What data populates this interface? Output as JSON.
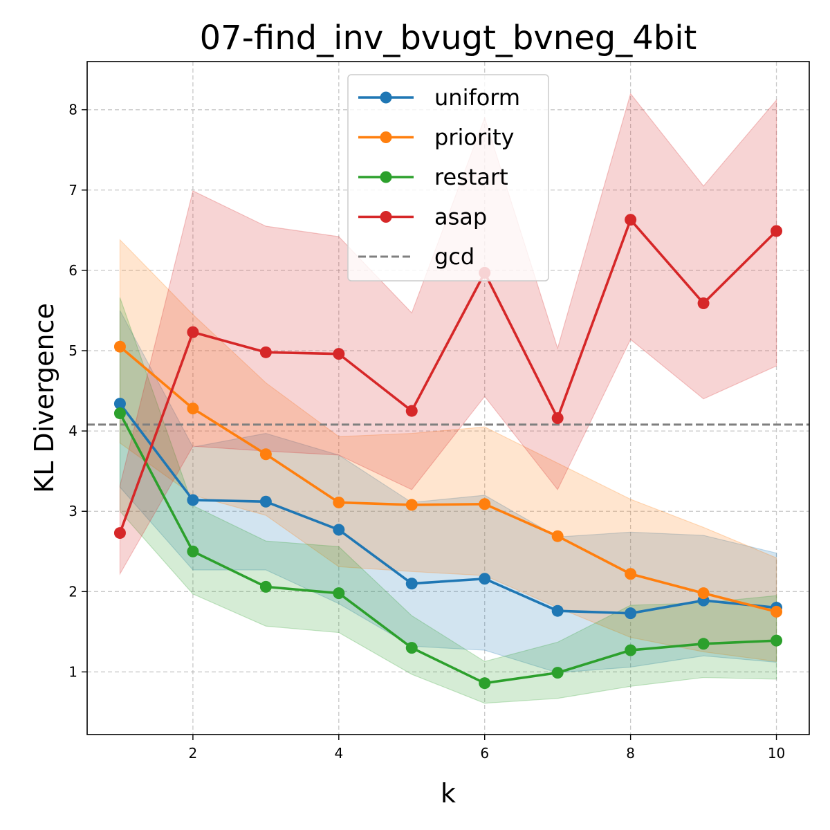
{
  "chart_data": {
    "type": "line",
    "title": "07-find_inv_bvugt_bvneg_4bit",
    "xlabel": "k",
    "ylabel": "KL Divergence",
    "xlim": [
      0.55,
      10.45
    ],
    "ylim": [
      0.22,
      8.6
    ],
    "xticks": [
      2,
      4,
      6,
      8,
      10
    ],
    "yticks": [
      1,
      2,
      3,
      4,
      5,
      6,
      7,
      8
    ],
    "grid": true,
    "legend_position": "upper center",
    "x": [
      1,
      2,
      3,
      4,
      5,
      6,
      7,
      8,
      9,
      10
    ],
    "series": [
      {
        "name": "uniform",
        "color": "#1f77b4",
        "values": [
          4.34,
          3.14,
          3.12,
          2.77,
          2.1,
          2.16,
          1.76,
          1.73,
          1.89,
          1.8
        ],
        "lower": [
          3.3,
          2.27,
          2.27,
          1.85,
          1.32,
          1.27,
          0.99,
          1.06,
          1.2,
          1.12
        ],
        "upper": [
          5.5,
          3.8,
          3.97,
          3.7,
          3.11,
          3.2,
          2.68,
          2.74,
          2.7,
          2.48
        ]
      },
      {
        "name": "priority",
        "color": "#ff7f0e",
        "values": [
          5.05,
          4.28,
          3.71,
          3.11,
          3.08,
          3.09,
          2.69,
          2.22,
          1.98,
          1.75
        ],
        "lower": [
          3.85,
          3.2,
          2.95,
          2.31,
          2.25,
          2.2,
          1.8,
          1.43,
          1.25,
          1.13
        ],
        "upper": [
          6.38,
          5.45,
          4.6,
          3.93,
          3.97,
          4.05,
          3.6,
          3.15,
          2.8,
          2.42
        ]
      },
      {
        "name": "restart",
        "color": "#2ca02c",
        "values": [
          4.22,
          2.5,
          2.06,
          1.98,
          1.3,
          0.86,
          0.99,
          1.27,
          1.35,
          1.39
        ],
        "lower": [
          3.0,
          1.97,
          1.57,
          1.49,
          0.97,
          0.61,
          0.67,
          0.82,
          0.93,
          0.91
        ],
        "upper": [
          5.66,
          3.07,
          2.63,
          2.56,
          1.7,
          1.13,
          1.37,
          1.83,
          1.86,
          1.95
        ]
      },
      {
        "name": "asap",
        "color": "#d62728",
        "values": [
          2.73,
          5.23,
          4.98,
          4.96,
          4.25,
          5.97,
          4.16,
          6.63,
          5.59,
          6.49
        ],
        "lower": [
          2.22,
          3.81,
          3.75,
          3.7,
          3.27,
          4.43,
          3.27,
          5.14,
          4.4,
          4.81
        ],
        "upper": [
          3.32,
          6.99,
          6.55,
          6.42,
          5.47,
          7.9,
          5.03,
          8.2,
          7.05,
          8.12
        ]
      }
    ],
    "reference_lines": [
      {
        "name": "gcd",
        "color": "#7f7f7f",
        "value": 4.08,
        "style": "dashed"
      }
    ]
  }
}
